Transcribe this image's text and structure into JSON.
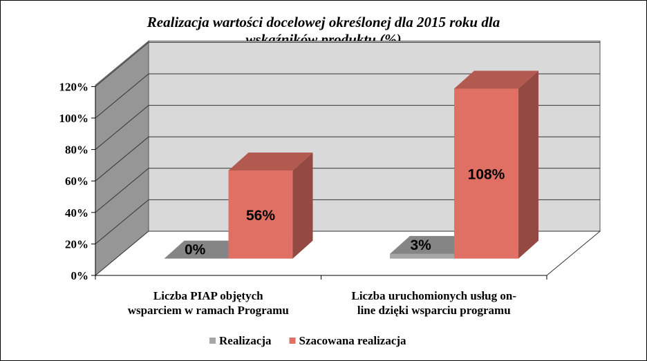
{
  "chart_data": {
    "type": "bar",
    "title_lines": [
      "Realizacja wartości docelowej określonej dla 2015 roku dla",
      "wskaźników produktu (%)"
    ],
    "categories": [
      {
        "lines": [
          "Liczba PIAP objętych",
          "wsparciem w ramach Programu"
        ]
      },
      {
        "lines": [
          "Liczba uruchomionych usług on-",
          "line dzięki wsparciu programu"
        ]
      }
    ],
    "series": [
      {
        "name": "Realizacja",
        "values": [
          0,
          3
        ],
        "labels": [
          "0%",
          "3%"
        ],
        "color": "#a6a6a6"
      },
      {
        "name": "Szacowana realizacja",
        "values": [
          56,
          108
        ],
        "labels": [
          "56%",
          "108%"
        ],
        "color": "#e07064"
      }
    ],
    "y_ticks": [
      "0%",
      "20%",
      "40%",
      "60%",
      "80%",
      "100%",
      "120%"
    ],
    "ylim": [
      0,
      120
    ],
    "grid": true,
    "legend_position": "bottom",
    "wall_color": "#d9d9d9",
    "side_wall_color": "#969696"
  }
}
